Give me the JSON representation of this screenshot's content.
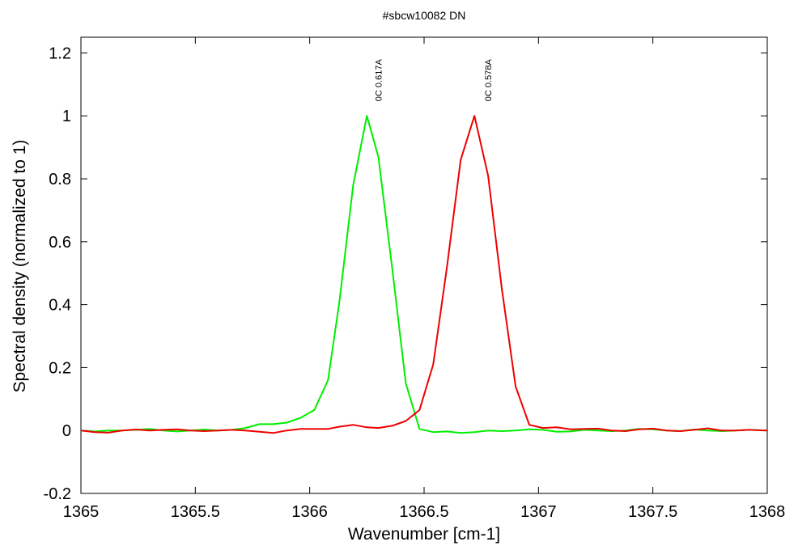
{
  "chart_data": {
    "type": "line",
    "title": "#sbcw10082 DN",
    "xlabel": "Wavenumber [cm-1]",
    "ylabel": "Spectral density (normalized to 1)",
    "xlim": [
      1365,
      1368
    ],
    "ylim": [
      -0.2,
      1.25
    ],
    "xticks": [
      1365,
      1365.5,
      1366,
      1366.5,
      1367,
      1367.5,
      1368
    ],
    "xtick_labels": [
      "1365",
      "1365.5",
      "1366",
      "1366.5",
      "1367",
      "1367.5",
      "1368"
    ],
    "yticks": [
      -0.2,
      0,
      0.2,
      0.4,
      0.6,
      0.8,
      1,
      1.2
    ],
    "ytick_labels": [
      "-0.2",
      "0",
      "0.2",
      "0.4",
      "0.6",
      "0.8",
      "1",
      "1.2"
    ],
    "grid": false,
    "annotations": [
      {
        "text": "0C 0.617A",
        "x": 1366.3,
        "y": 1.0,
        "orientation": "vertical"
      },
      {
        "text": "0C 0.578A",
        "x": 1366.78,
        "y": 1.0,
        "orientation": "vertical"
      }
    ],
    "series": [
      {
        "color": "#00ee00",
        "x": [
          1365,
          1365.06,
          1365.12,
          1365.18,
          1365.24,
          1365.3,
          1365.36,
          1365.42,
          1365.48,
          1365.54,
          1365.6,
          1365.66,
          1365.72,
          1365.78,
          1365.84,
          1365.9,
          1365.96,
          1366.02,
          1366.08,
          1366.13,
          1366.19,
          1366.25,
          1366.3,
          1366.36,
          1366.42,
          1366.48,
          1366.54,
          1366.6,
          1366.66,
          1366.72,
          1366.78,
          1366.84,
          1366.9,
          1366.96,
          1367.02,
          1367.08,
          1367.14,
          1367.2,
          1367.26,
          1367.32,
          1367.38,
          1367.44,
          1367.5,
          1367.56,
          1367.62,
          1367.68,
          1367.74,
          1367.8,
          1367.86,
          1367.92,
          1368
        ],
        "y": [
          0.0,
          -0.003,
          0.0,
          0.0,
          0.002,
          0.005,
          0.0,
          -0.003,
          0.0,
          0.003,
          0.0,
          0.002,
          0.008,
          0.02,
          0.02,
          0.025,
          0.04,
          0.065,
          0.16,
          0.41,
          0.78,
          1.0,
          0.87,
          0.52,
          0.15,
          0.005,
          -0.005,
          -0.003,
          -0.008,
          -0.005,
          0.0,
          -0.002,
          0.0,
          0.004,
          0.002,
          -0.004,
          -0.003,
          0.002,
          0.0,
          -0.002,
          0.0,
          0.005,
          0.004,
          0.0,
          -0.002,
          0.003,
          0.0,
          -0.002,
          0.0,
          0.002,
          0.0
        ]
      },
      {
        "color": "#ee0000",
        "x": [
          1365,
          1365.06,
          1365.12,
          1365.18,
          1365.24,
          1365.3,
          1365.36,
          1365.42,
          1365.48,
          1365.54,
          1365.6,
          1365.66,
          1365.72,
          1365.78,
          1365.84,
          1365.9,
          1365.96,
          1366.02,
          1366.08,
          1366.13,
          1366.19,
          1366.25,
          1366.3,
          1366.36,
          1366.42,
          1366.48,
          1366.54,
          1366.6,
          1366.66,
          1366.72,
          1366.78,
          1366.84,
          1366.9,
          1366.96,
          1367.02,
          1367.08,
          1367.14,
          1367.2,
          1367.26,
          1367.32,
          1367.38,
          1367.44,
          1367.5,
          1367.56,
          1367.62,
          1367.68,
          1367.74,
          1367.8,
          1367.86,
          1367.92,
          1368
        ],
        "y": [
          0.0,
          -0.005,
          -0.007,
          0.0,
          0.003,
          0.0,
          0.002,
          0.004,
          0.0,
          -0.002,
          0.0,
          0.002,
          0.0,
          -0.004,
          -0.008,
          0.0,
          0.005,
          0.005,
          0.005,
          0.012,
          0.018,
          0.01,
          0.008,
          0.015,
          0.03,
          0.065,
          0.21,
          0.52,
          0.86,
          1.0,
          0.81,
          0.45,
          0.14,
          0.018,
          0.008,
          0.01,
          0.004,
          0.005,
          0.006,
          0.0,
          -0.002,
          0.004,
          0.006,
          0.0,
          -0.002,
          0.002,
          0.007,
          0.0,
          0.0,
          0.002,
          0.0
        ]
      }
    ]
  }
}
